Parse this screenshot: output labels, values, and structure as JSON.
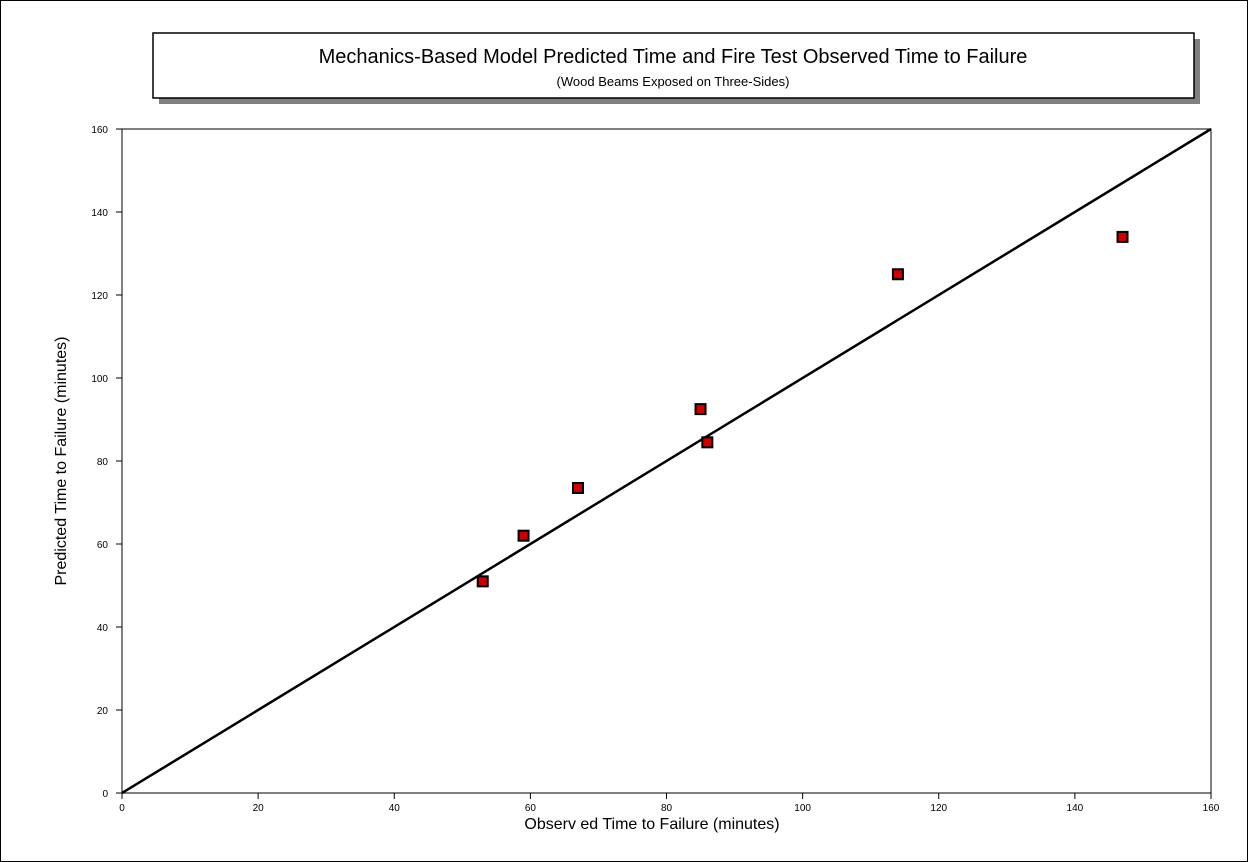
{
  "chart_data": {
    "type": "scatter",
    "title": "Mechanics-Based Model Predicted Time and Fire Test Observed Time to Failure",
    "subtitle": "(Wood Beams Exposed on Three-Sides)",
    "xlabel": "Observ ed Time to Failure (minutes)",
    "ylabel": "Predicted Time to Failure (minutes)",
    "xlim": [
      0,
      160
    ],
    "ylim": [
      0,
      160
    ],
    "xticks": [
      "0",
      "20",
      "40",
      "60",
      "80",
      "100",
      "120",
      "140",
      "160"
    ],
    "yticks": [
      "0",
      "20",
      "40",
      "60",
      "80",
      "100",
      "120",
      "140",
      "160"
    ],
    "grid": false,
    "series": [
      {
        "x": [
          53,
          59,
          67,
          85,
          86,
          114,
          147
        ],
        "y": [
          51,
          62,
          73.5,
          92.5,
          84.5,
          125,
          134
        ],
        "marker": "square",
        "color": "#cc0000",
        "edgecolor": "#000000"
      }
    ],
    "reference_line": {
      "x": [
        0,
        160
      ],
      "y": [
        0,
        160
      ],
      "color": "#000000"
    }
  }
}
